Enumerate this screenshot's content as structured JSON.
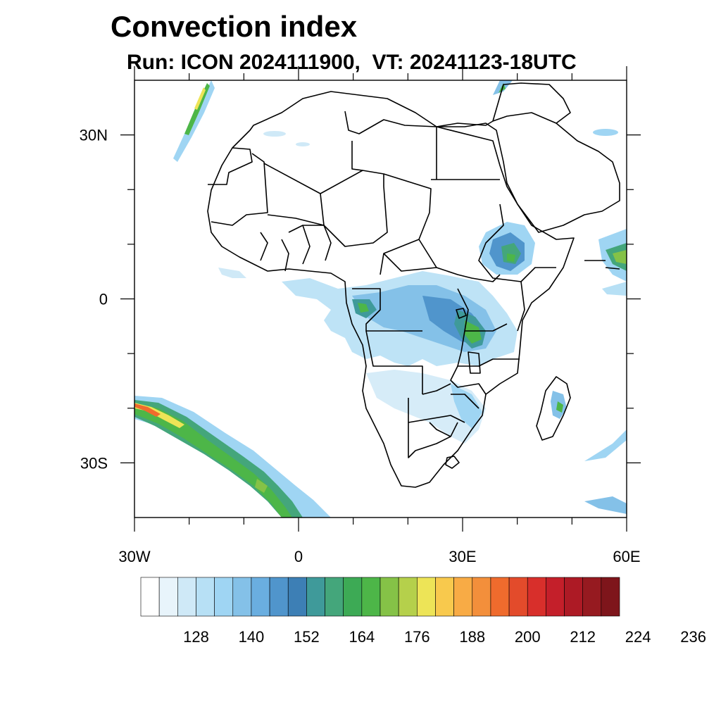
{
  "title": "Convection index",
  "subtitle": "Run: ICON 2024111900,  VT: 20241123-18UTC",
  "axes": {
    "x_ticks": [
      {
        "label": "30W",
        "lon": -30
      },
      {
        "label": "0",
        "lon": 0
      },
      {
        "label": "30E",
        "lon": 30
      },
      {
        "label": "60E",
        "lon": 60
      }
    ],
    "y_ticks": [
      {
        "label": "30N",
        "lat": 30
      },
      {
        "label": "0",
        "lat": 0
      },
      {
        "label": "30S",
        "lat": -30
      }
    ],
    "lon_range": [
      -30,
      60
    ],
    "lat_range": [
      -40,
      40
    ]
  },
  "colorbar": {
    "colors": [
      "#ffffff",
      "#e8f4fb",
      "#cfe9f7",
      "#b7e0f5",
      "#9fd5f3",
      "#84c1e8",
      "#6aaee0",
      "#5095cc",
      "#3d7fb5",
      "#3f9a9a",
      "#44a67b",
      "#3daa55",
      "#4db648",
      "#85c247",
      "#b5d04b",
      "#ede457",
      "#f8c94d",
      "#f8ab45",
      "#f38f3b",
      "#ef6b2d",
      "#e34b2b",
      "#d82f2b",
      "#c41f2a",
      "#ad1a25",
      "#961a20",
      "#7e151b"
    ],
    "tick_labels": [
      "128",
      "140",
      "152",
      "164",
      "176",
      "188",
      "200",
      "212",
      "224",
      "236"
    ]
  }
}
